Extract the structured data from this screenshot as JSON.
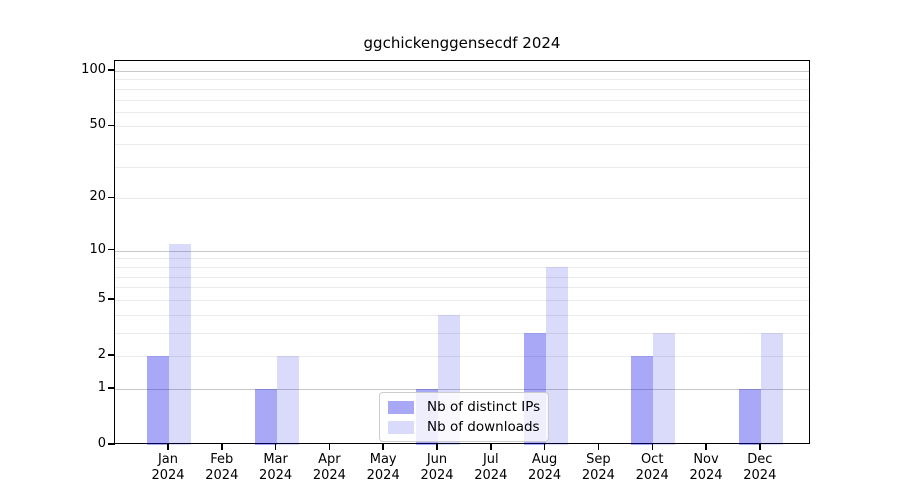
{
  "chart_data": {
    "type": "bar",
    "title": "ggchickenggensecdf 2024",
    "xlabel": "",
    "ylabel": "",
    "categories": [
      "Jan",
      "Feb",
      "Mar",
      "Apr",
      "May",
      "Jun",
      "Jul",
      "Aug",
      "Sep",
      "Oct",
      "Nov",
      "Dec"
    ],
    "x_tick_second_line": "2024",
    "series": [
      {
        "name": "Nb of distinct IPs",
        "color": "#0000E6",
        "alpha": 0.34,
        "values": [
          2,
          0,
          1,
          0,
          0,
          1,
          0,
          3,
          0,
          2,
          0,
          1
        ]
      },
      {
        "name": "Nb of downloads",
        "color": "#0000E6",
        "alpha": 0.145,
        "values": [
          11,
          0,
          2,
          0,
          0,
          4,
          0,
          8,
          0,
          3,
          0,
          3
        ]
      }
    ],
    "yscale": "log1p",
    "ylim": [
      0,
      113
    ],
    "yticks": [
      100,
      50,
      20,
      10,
      5,
      2,
      1,
      0
    ],
    "major_grid_values": [
      1,
      10,
      100
    ],
    "minor_grid_values": [
      2,
      3,
      4,
      5,
      6,
      7,
      8,
      9,
      20,
      30,
      40,
      50,
      60,
      70,
      80,
      90
    ],
    "grid": true,
    "legend_position": "lower center"
  },
  "colors": {
    "bar_distinct_ips_on_white": "#ABABF8",
    "bar_downloads_on_white": "#DBDBFB",
    "major_grid": "#C8C8C8",
    "minor_grid": "#EBEBEB",
    "axis": "#000000",
    "background": "#FFFFFF"
  }
}
